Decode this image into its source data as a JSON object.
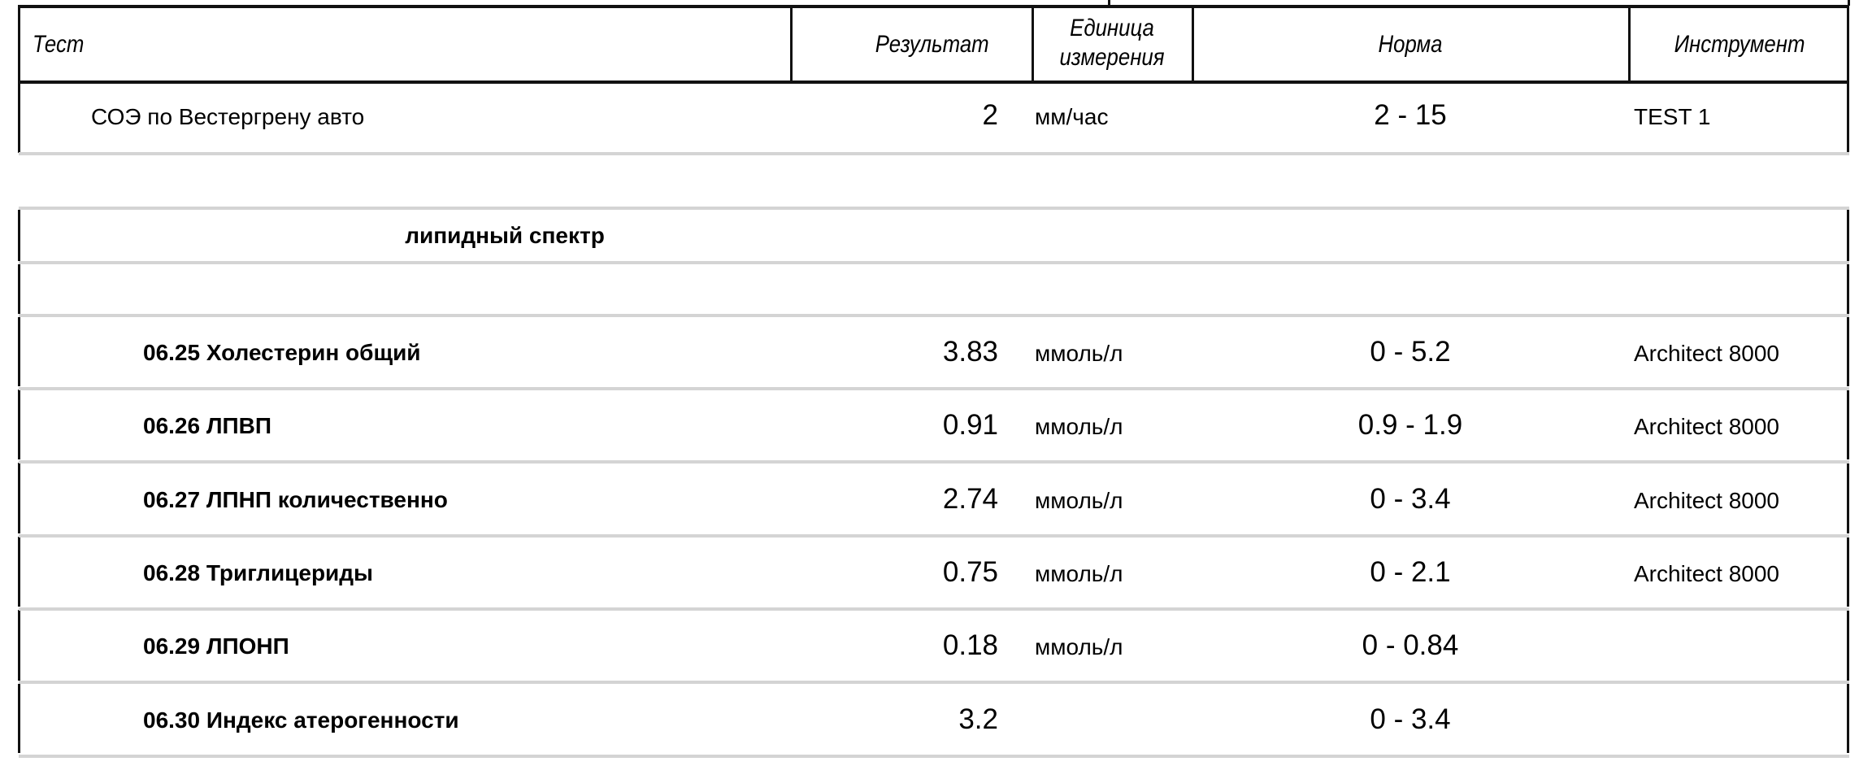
{
  "header": {
    "test": "Тест",
    "result": "Результат",
    "unit_line1": "Единица",
    "unit_line2": "измерения",
    "norm": "Норма",
    "instrument": "Инструмент"
  },
  "first_row": {
    "name": "СОЭ по Вестергрену авто",
    "result": "2",
    "unit": "мм/час",
    "norm": "2 - 15",
    "instrument": "TEST 1"
  },
  "group": {
    "title": "липидный спектр",
    "rows": [
      {
        "name": "06.25 Холестерин общий",
        "result": "3.83",
        "unit": "ммоль/л",
        "norm": "0 - 5.2",
        "instrument": "Architect 8000"
      },
      {
        "name": "06.26 ЛПВП",
        "result": "0.91",
        "unit": "ммоль/л",
        "norm": "0.9 - 1.9",
        "instrument": "Architect 8000"
      },
      {
        "name": "06.27 ЛПНП количественно",
        "result": "2.74",
        "unit": "ммоль/л",
        "norm": "0 - 3.4",
        "instrument": "Architect 8000"
      },
      {
        "name": "06.28 Триглицериды",
        "result": "0.75",
        "unit": "ммоль/л",
        "norm": "0 - 2.1",
        "instrument": "Architect 8000"
      },
      {
        "name": "06.29 ЛПОНП",
        "result": "0.18",
        "unit": "ммоль/л",
        "norm": "0 - 0.84",
        "instrument": ""
      },
      {
        "name": "06.30 Индекс атерогенности",
        "result": "3.2",
        "unit": "",
        "norm": "0 - 3.4",
        "instrument": ""
      }
    ]
  }
}
